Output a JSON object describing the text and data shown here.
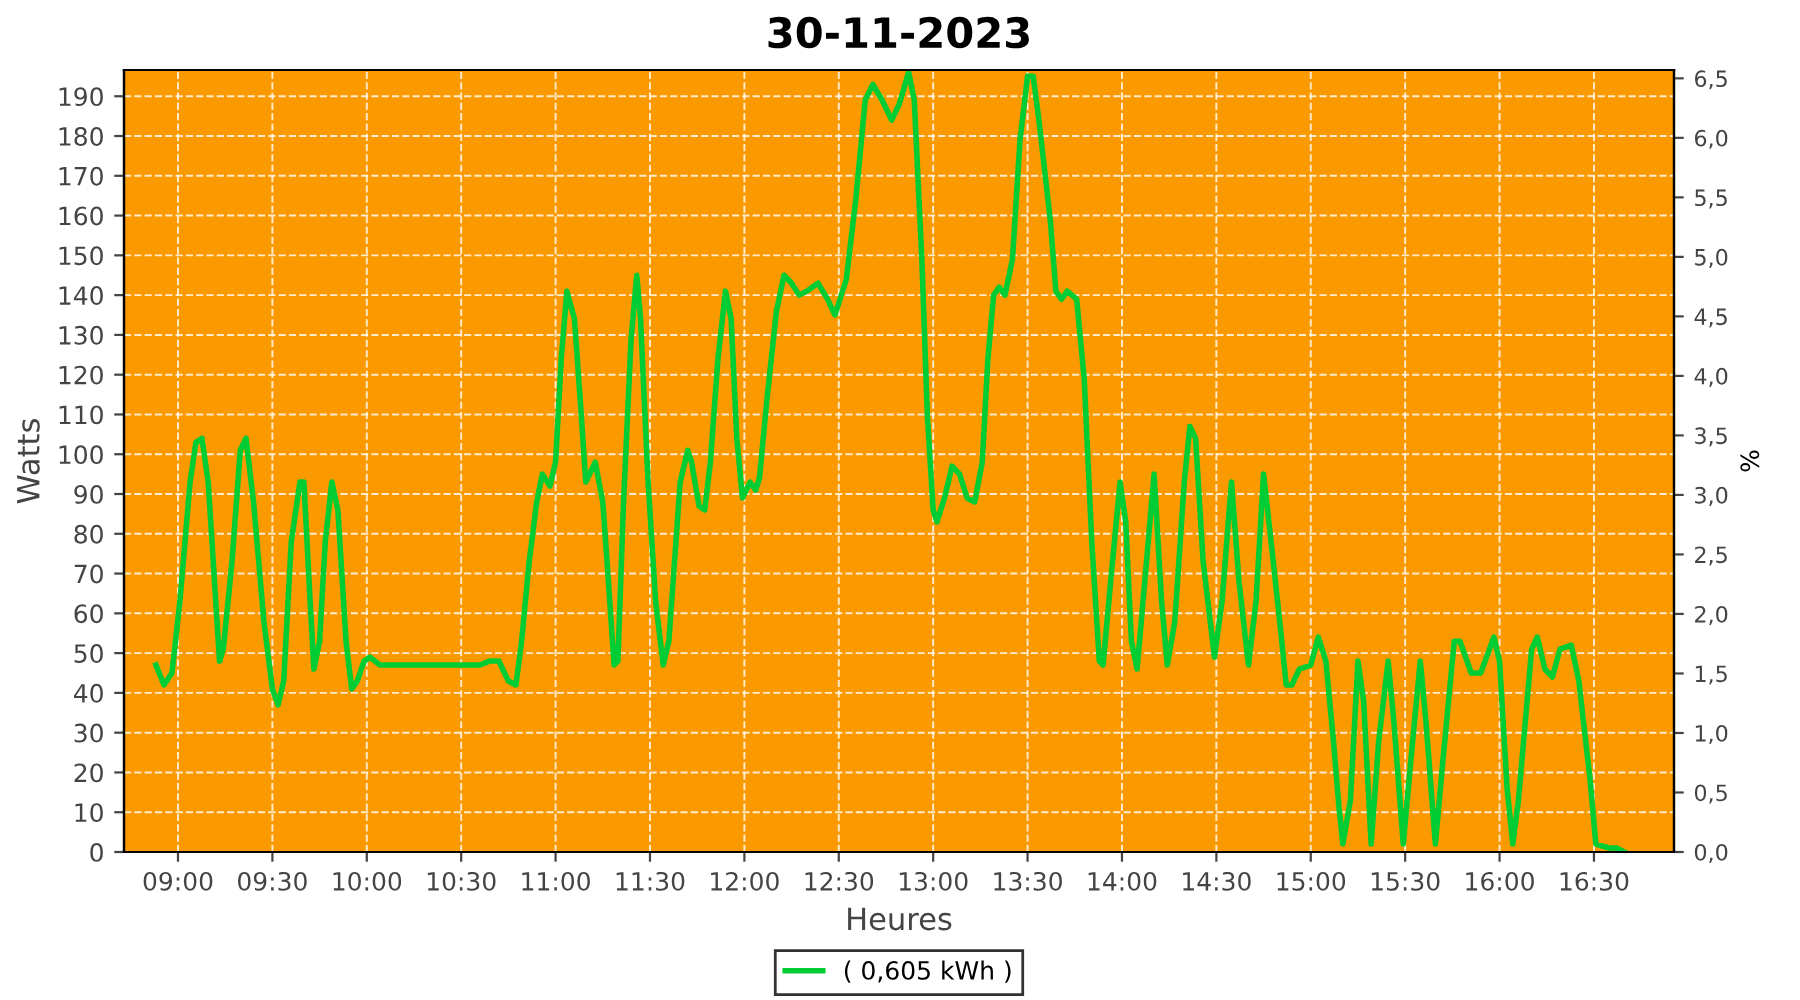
{
  "chart_data": {
    "type": "line",
    "title": "30-11-2023",
    "xlabel": "Heures",
    "ylabel": "Watts",
    "y2label": "%",
    "series": [
      {
        "name": "( 0,605 kWh )",
        "color": "#00cc33",
        "x": [
          8.883,
          8.926,
          8.968,
          9.01,
          9.064,
          9.095,
          9.127,
          9.16,
          9.2,
          9.22,
          9.24,
          9.286,
          9.33,
          9.36,
          9.4,
          9.455,
          9.5,
          9.53,
          9.56,
          9.6,
          9.646,
          9.667,
          9.7,
          9.72,
          9.75,
          9.78,
          9.815,
          9.847,
          9.89,
          9.92,
          9.95,
          9.985,
          10.017,
          10.07,
          10.176,
          10.6,
          10.65,
          10.7,
          10.75,
          10.79,
          10.82,
          10.86,
          10.9,
          10.93,
          10.97,
          11.0,
          11.03,
          11.06,
          11.1,
          11.13,
          11.16,
          11.21,
          11.25,
          11.28,
          11.31,
          11.33,
          11.36,
          11.4,
          11.43,
          11.45,
          11.49,
          11.53,
          11.57,
          11.6,
          11.63,
          11.66,
          11.7,
          11.72,
          11.76,
          11.79,
          11.82,
          11.86,
          11.9,
          11.93,
          11.96,
          11.99,
          12.03,
          12.06,
          12.08,
          12.12,
          12.17,
          12.21,
          12.25,
          12.29,
          12.33,
          12.39,
          12.44,
          12.48,
          12.54,
          12.59,
          12.64,
          12.68,
          12.73,
          12.78,
          12.82,
          12.87,
          12.9,
          12.94,
          12.97,
          13.0,
          13.02,
          13.06,
          13.1,
          13.14,
          13.18,
          13.22,
          13.26,
          13.29,
          13.32,
          13.35,
          13.38,
          13.42,
          13.46,
          13.5,
          13.53,
          13.56,
          13.62,
          13.65,
          13.68,
          13.71,
          13.76,
          13.8,
          13.84,
          13.88,
          13.9,
          13.94,
          13.99,
          14.02,
          14.05,
          14.08,
          14.13,
          14.17,
          14.21,
          14.24,
          14.28,
          14.33,
          14.36,
          14.39,
          14.43,
          14.49,
          14.53,
          14.58,
          14.62,
          14.67,
          14.71,
          14.75,
          14.79,
          14.84,
          14.87,
          14.9,
          14.94,
          15.0,
          15.04,
          15.08,
          15.12,
          15.15,
          15.17,
          15.21,
          15.25,
          15.28,
          15.32,
          15.36,
          15.41,
          15.44,
          15.49,
          15.53,
          15.58,
          15.61,
          15.66,
          15.7,
          15.76,
          15.79,
          15.85,
          15.9,
          15.97,
          16.0,
          16.04,
          16.07,
          16.1,
          16.17,
          16.2,
          16.24,
          16.28,
          16.32,
          16.38,
          16.42,
          16.48,
          16.51,
          16.58,
          16.62,
          16.66
        ],
        "values": [
          47,
          42,
          45,
          63,
          93,
          103,
          104,
          93,
          63,
          48,
          51,
          73,
          101,
          104,
          88,
          58,
          41,
          37,
          43,
          78,
          93,
          93,
          63,
          46,
          53,
          78,
          93,
          86,
          53,
          41,
          43,
          48,
          49,
          47,
          47,
          47,
          48,
          48,
          43,
          42,
          53,
          73,
          88,
          95,
          92,
          98,
          124,
          141,
          134,
          114,
          93,
          98,
          88,
          68,
          47,
          48,
          88,
          129,
          145,
          134,
          93,
          63,
          47,
          53,
          73,
          93,
          101,
          98,
          87,
          86,
          98,
          124,
          141,
          134,
          104,
          89,
          93,
          91,
          94,
          114,
          136,
          145,
          143,
          140,
          141,
          143,
          139,
          135,
          144,
          164,
          189,
          193,
          189,
          184,
          188,
          196,
          189,
          149,
          109,
          86,
          83,
          89,
          97,
          95,
          89,
          88,
          98,
          124,
          140,
          142,
          140,
          149,
          179,
          195,
          195,
          184,
          159,
          141,
          139,
          141,
          139,
          119,
          78,
          48,
          47,
          68,
          93,
          83,
          53,
          46,
          73,
          95,
          63,
          47,
          58,
          93,
          107,
          104,
          73,
          49,
          63,
          93,
          68,
          47,
          63,
          95,
          78,
          56,
          42,
          42,
          46,
          47,
          54,
          48,
          28,
          11,
          2,
          13,
          48,
          38,
          2,
          28,
          48,
          33,
          2,
          23,
          48,
          33,
          2,
          23,
          53,
          53,
          45,
          45,
          54,
          48,
          16,
          2,
          13,
          51,
          54,
          46,
          44,
          51,
          52,
          43,
          18,
          2,
          1,
          1,
          0
        ]
      }
    ],
    "xlim": [
      8.714,
      16.924
    ],
    "xticks": [
      {
        "value": 9,
        "label": "09:00"
      },
      {
        "value": 9.5,
        "label": "09:30"
      },
      {
        "value": 10,
        "label": "10:00"
      },
      {
        "value": 10.5,
        "label": "10:30"
      },
      {
        "value": 11,
        "label": "11:00"
      },
      {
        "value": 11.5,
        "label": "11:30"
      },
      {
        "value": 12,
        "label": "12:00"
      },
      {
        "value": 12.5,
        "label": "12:30"
      },
      {
        "value": 13,
        "label": "13:00"
      },
      {
        "value": 13.5,
        "label": "13:30"
      },
      {
        "value": 14,
        "label": "14:00"
      },
      {
        "value": 14.5,
        "label": "14:30"
      },
      {
        "value": 15,
        "label": "15:00"
      },
      {
        "value": 15.5,
        "label": "15:30"
      },
      {
        "value": 16,
        "label": "16:00"
      },
      {
        "value": 16.5,
        "label": "16:30"
      }
    ],
    "ylim": [
      0,
      196.6
    ],
    "yticks": [
      0,
      10,
      20,
      30,
      40,
      50,
      60,
      70,
      80,
      90,
      100,
      110,
      120,
      130,
      140,
      150,
      160,
      170,
      180,
      190
    ],
    "y2lim": [
      0,
      6.57
    ],
    "y2ticks": [
      {
        "value": 0,
        "label": "0,0"
      },
      {
        "value": 0.5,
        "label": "0,5"
      },
      {
        "value": 1,
        "label": "1,0"
      },
      {
        "value": 1.5,
        "label": "1,5"
      },
      {
        "value": 2,
        "label": "2,0"
      },
      {
        "value": 2.5,
        "label": "2,5"
      },
      {
        "value": 3,
        "label": "3,0"
      },
      {
        "value": 3.5,
        "label": "3,5"
      },
      {
        "value": 4,
        "label": "4,0"
      },
      {
        "value": 4.5,
        "label": "4,5"
      },
      {
        "value": 5,
        "label": "5,0"
      },
      {
        "value": 5.5,
        "label": "5,5"
      },
      {
        "value": 6,
        "label": "6,0"
      },
      {
        "value": 6.5,
        "label": "6,5"
      }
    ],
    "grid": true,
    "legend": "bottom",
    "marker": "none",
    "line_style": "solid"
  }
}
